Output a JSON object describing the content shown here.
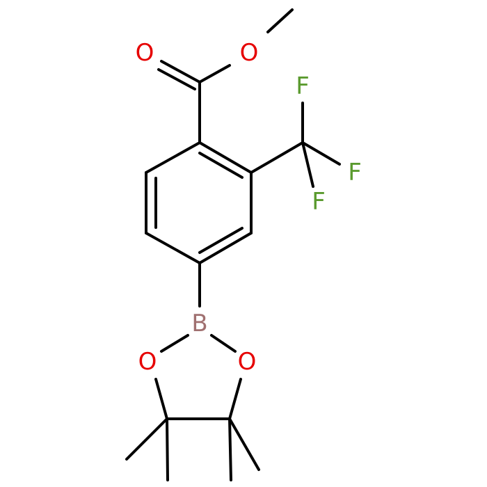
{
  "atoms": [
    "O",
    "O",
    "F",
    "F",
    "F",
    "B",
    "O",
    "O"
  ]
}
